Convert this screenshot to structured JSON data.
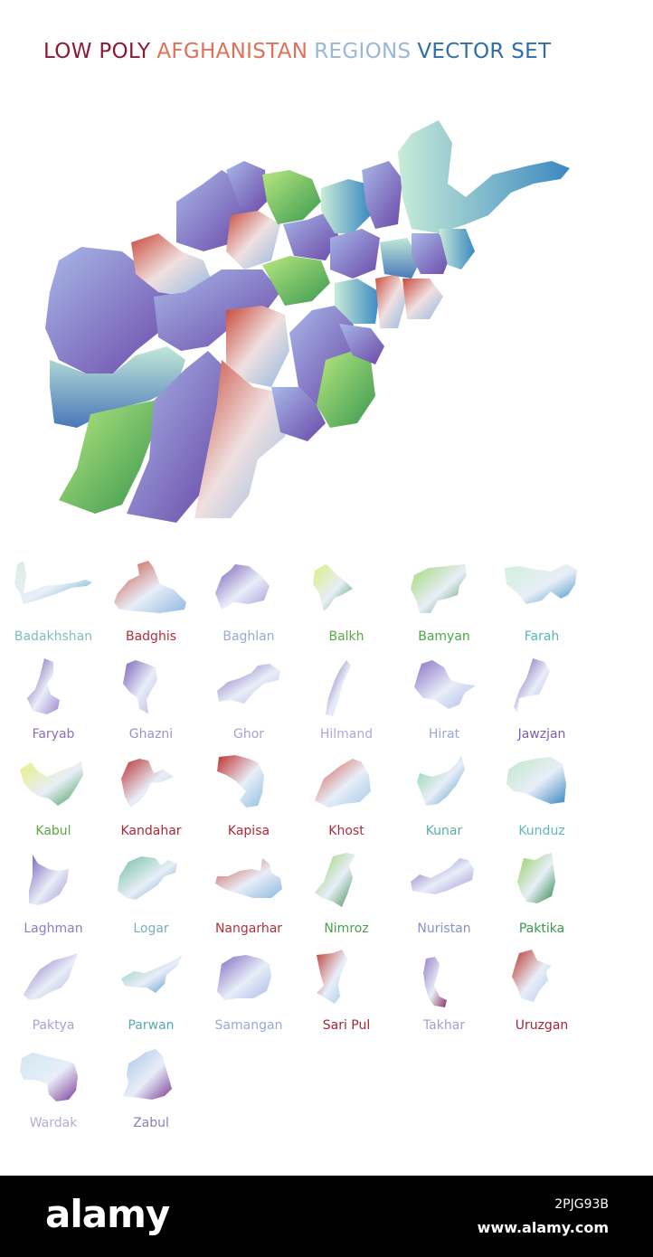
{
  "title_parts": [
    {
      "text": "LOW POLY",
      "color": "#8a1a3a"
    },
    {
      "text": "AFGHANISTAN",
      "color": "#e0705a"
    },
    {
      "text": "REGIONS",
      "color": "#98b8d8"
    },
    {
      "text": "VECTOR SET",
      "color": "#2f6ea8"
    }
  ],
  "regions": [
    {
      "name": "Badakhshan",
      "color": "#7fbfb8",
      "c1": "#d8f0e0",
      "c2": "#4aa8b8"
    },
    {
      "name": "Badghis",
      "color": "#b0303a",
      "c1": "#c84838",
      "c2": "#90b8e0"
    },
    {
      "name": "Baghlan",
      "color": "#9aaad0",
      "c1": "#7a5cb8",
      "c2": "#a898d8"
    },
    {
      "name": "Balkh",
      "color": "#5aa84a",
      "c1": "#d8f080",
      "c2": "#3a9a5a"
    },
    {
      "name": "Bamyan",
      "color": "#4aa84a",
      "c1": "#a0d870",
      "c2": "#3a8848"
    },
    {
      "name": "Farah",
      "color": "#58b8b0",
      "c1": "#d0f0d8",
      "c2": "#3a90c0"
    },
    {
      "name": "Faryab",
      "color": "#8a70b8",
      "c1": "#6a4aa0",
      "c2": "#a088d0"
    },
    {
      "name": "Ghazni",
      "color": "#a090c8",
      "c1": "#7a60b8",
      "c2": "#c0b0e0"
    },
    {
      "name": "Ghor",
      "color": "#a8a0d0",
      "c1": "#7a60b8",
      "c2": "#b8b0e0"
    },
    {
      "name": "Hilmand",
      "color": "#b0a8d8",
      "c1": "#6a50a8",
      "c2": "#c8c0e8"
    },
    {
      "name": "Hirat",
      "color": "#9aa8d8",
      "c1": "#8a70c8",
      "c2": "#b0b8e8"
    },
    {
      "name": "Jawzjan",
      "color": "#7a60b0",
      "c1": "#6a4aa0",
      "c2": "#b0a8e0"
    },
    {
      "name": "Kabul",
      "color": "#5aa840",
      "c1": "#e8f080",
      "c2": "#3a9a50"
    },
    {
      "name": "Kandahar",
      "color": "#a82838",
      "c1": "#b83030",
      "c2": "#c0d0e8"
    },
    {
      "name": "Kapisa",
      "color": "#b02838",
      "c1": "#c03030",
      "c2": "#90c0e0"
    },
    {
      "name": "Khost",
      "color": "#a83040",
      "c1": "#d05040",
      "c2": "#a0c8e8"
    },
    {
      "name": "Kunar",
      "color": "#58b0a8",
      "c1": "#80d0a0",
      "c2": "#3a90b8"
    },
    {
      "name": "Kunduz",
      "color": "#60b8b8",
      "c1": "#c0e8c8",
      "c2": "#3a88c0"
    },
    {
      "name": "Laghman",
      "color": "#8a80c8",
      "c1": "#7a60b8",
      "c2": "#a090d0"
    },
    {
      "name": "Logar",
      "color": "#7ab0b8",
      "c1": "#70c0a0",
      "c2": "#4a90c0"
    },
    {
      "name": "Nangarhar",
      "color": "#b03040",
      "c1": "#c85040",
      "c2": "#90b8e0"
    },
    {
      "name": "Nimroz",
      "color": "#4aa050",
      "c1": "#90d060",
      "c2": "#3a8848"
    },
    {
      "name": "Nuristan",
      "color": "#8a90c8",
      "c1": "#7a60b8",
      "c2": "#a090d0"
    },
    {
      "name": "Paktika",
      "color": "#3a9850",
      "c1": "#90d060",
      "c2": "#2a8848"
    },
    {
      "name": "Paktya",
      "color": "#a8a0d8",
      "c1": "#7a60b8",
      "c2": "#a0b0e0"
    },
    {
      "name": "Parwan",
      "color": "#5aa8b0",
      "c1": "#80c8b0",
      "c2": "#3a88c0"
    },
    {
      "name": "Samangan",
      "color": "#9aa8d8",
      "c1": "#8068c0",
      "c2": "#a8b8e8"
    },
    {
      "name": "Sari Pul",
      "color": "#a02838",
      "c1": "#c04038",
      "c2": "#a0c8e8"
    },
    {
      "name": "Takhar",
      "color": "#a0a0d0",
      "c1": "#9a80c8",
      "c2": "#8a3060"
    },
    {
      "name": "Uruzgan",
      "color": "#a02838",
      "c1": "#b83028",
      "c2": "#b0c8e8"
    },
    {
      "name": "Wardak",
      "color": "#b0b0d8",
      "c1": "#d0e8f0",
      "c2": "#7a3a98"
    },
    {
      "name": "Zabul",
      "color": "#8a80c0",
      "c1": "#a8c0e8",
      "c2": "#7a3a98"
    }
  ],
  "footer": {
    "logo": "alamy",
    "image_id": "2PJG93B",
    "site": "www.alamy.com"
  }
}
